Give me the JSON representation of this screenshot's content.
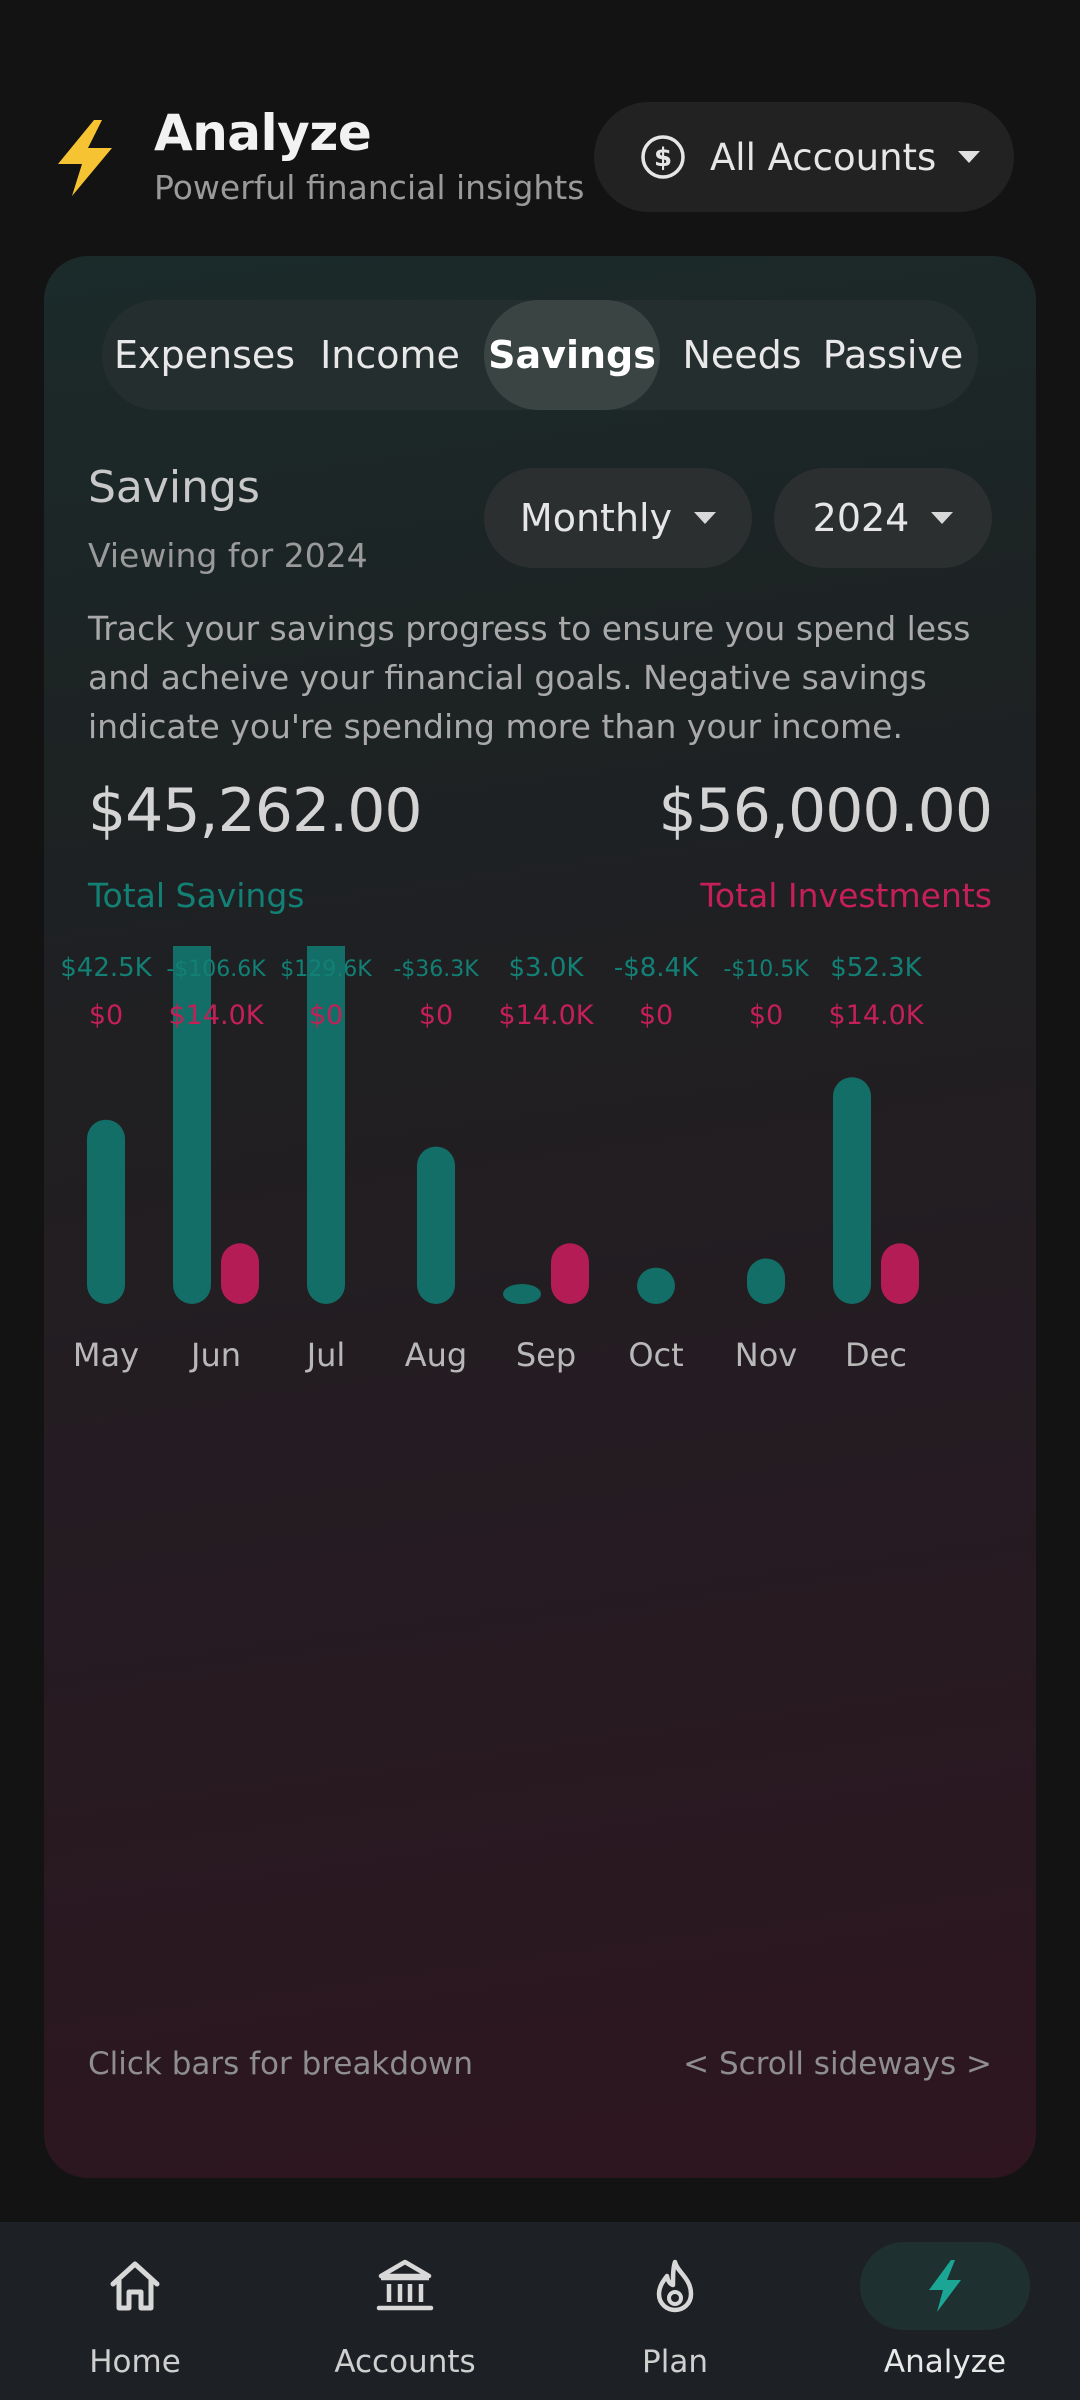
{
  "header": {
    "title": "Analyze",
    "subtitle": "Powerful financial insights",
    "account_selector": "All Accounts"
  },
  "tabs": [
    {
      "label": "Expenses",
      "active": false
    },
    {
      "label": "Income",
      "active": false
    },
    {
      "label": "Savings",
      "active": true
    },
    {
      "label": "Needs",
      "active": false
    },
    {
      "label": "Passive",
      "active": false
    }
  ],
  "section": {
    "title": "Savings",
    "subtitle": "Viewing for 2024",
    "period_select": "Monthly",
    "year_select": "2024",
    "description": "Track your savings progress to ensure you spend less and acheive your financial goals. Negative savings indicate you're spending more than your income."
  },
  "totals": {
    "savings_value": "$45,262.00",
    "savings_label": "Total Savings",
    "investments_value": "$56,000.00",
    "investments_label": "Total Investments"
  },
  "colors": {
    "savings": "#126e67",
    "investments": "#b41c56",
    "savings_text": "#128075",
    "investments_text": "#c41f57"
  },
  "chart_data": {
    "type": "bar",
    "categories": [
      "May",
      "Jun",
      "Jul",
      "Aug",
      "Sep",
      "Oct",
      "Nov",
      "Dec"
    ],
    "series": [
      {
        "name": "Savings",
        "values": [
          42.5,
          -106.6,
          129.6,
          -36.3,
          3.0,
          -8.4,
          -10.5,
          52.3
        ],
        "labels": [
          "$42.5K",
          "-$106.6K",
          "$129.6K",
          "-$36.3K",
          "$3.0K",
          "-$8.4K",
          "-$10.5K",
          "$52.3K"
        ]
      },
      {
        "name": "Investments",
        "values": [
          0,
          14.0,
          0,
          0,
          14.0,
          0,
          0,
          14.0
        ],
        "labels": [
          "$0",
          "$14.0K",
          "$0",
          "$0",
          "$14.0K",
          "$0",
          "$0",
          "$14.0K"
        ]
      }
    ],
    "units": "thousands USD",
    "bar_magnitude": "absolute value",
    "xlabel": "",
    "ylabel": ""
  },
  "footer": {
    "hint_left": "Click bars for breakdown",
    "hint_right": "< Scroll sideways >"
  },
  "nav": [
    {
      "label": "Home",
      "icon": "home-icon",
      "active": false
    },
    {
      "label": "Accounts",
      "icon": "bank-icon",
      "active": false
    },
    {
      "label": "Plan",
      "icon": "flame-icon",
      "active": false
    },
    {
      "label": "Analyze",
      "icon": "bolt-icon",
      "active": true
    }
  ]
}
